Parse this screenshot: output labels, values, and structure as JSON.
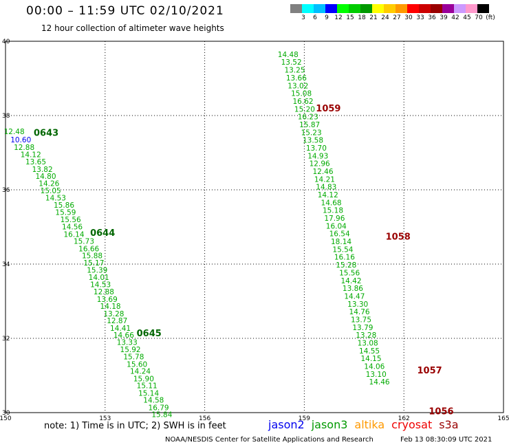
{
  "header": {
    "title": "00:00 – 11:59 UTC 02/10/2021",
    "subtitle": "12 hour collection of altimeter wave heights"
  },
  "color_legend": {
    "swatches": [
      "#808080",
      "#00ffff",
      "#00bfff",
      "#0000ff",
      "#00ff00",
      "#00cc00",
      "#009900",
      "#ffff00",
      "#ffcc00",
      "#ff9900",
      "#ff0000",
      "#cc0000",
      "#990000",
      "#990099",
      "#cc99ff",
      "#ff99cc",
      "#000000"
    ],
    "labels": [
      "3",
      "6",
      "9",
      "12",
      "15",
      "18",
      "21",
      "24",
      "27",
      "30",
      "33",
      "36",
      "39",
      "42",
      "45",
      "70",
      "(ft)"
    ]
  },
  "footer": {
    "note": "note: 1) Time is in UTC; 2) SWH is in feet",
    "credit_left": "NOAA/NESDIS Center for Satellite Applications and Research",
    "credit_right": "Feb 13 08:30:09 UTC 2021"
  },
  "satellites": [
    {
      "name": "jason2",
      "color": "#0000ee"
    },
    {
      "name": "jason3",
      "color": "#009900"
    },
    {
      "name": "altika",
      "color": "#ff9900"
    },
    {
      "name": "cryosat",
      "color": "#ee0000"
    },
    {
      "name": "s3a",
      "color": "#990000"
    }
  ],
  "chart_data": {
    "type": "scatter",
    "xlim": [
      150,
      165
    ],
    "ylim": [
      30,
      40
    ],
    "x_ticks": [
      "150",
      "153",
      "156",
      "159",
      "162",
      "165"
    ],
    "y_ticks": [
      "30",
      "32",
      "34",
      "36",
      "38",
      "40"
    ],
    "grid": true,
    "pass_labels": [
      {
        "text": "0643",
        "x": 150.85,
        "y": 37.55,
        "color": "#006600"
      },
      {
        "text": "0644",
        "x": 152.55,
        "y": 34.85,
        "color": "#006600"
      },
      {
        "text": "0645",
        "x": 153.95,
        "y": 32.15,
        "color": "#006600"
      },
      {
        "text": "1059",
        "x": 159.35,
        "y": 38.2,
        "color": "#990000"
      },
      {
        "text": "1058",
        "x": 161.45,
        "y": 34.75,
        "color": "#990000"
      },
      {
        "text": "1057",
        "x": 162.4,
        "y": 31.15,
        "color": "#990000"
      },
      {
        "text": "1056",
        "x": 162.75,
        "y": 30.05,
        "color": "#990000"
      }
    ],
    "series": [
      {
        "name": "jason2",
        "color": "#0000ee",
        "points": [
          {
            "x": 150.15,
            "y": 37.35,
            "v": "10.60"
          }
        ]
      },
      {
        "name": "jason3",
        "color": "#00aa00",
        "points": [
          {
            "x": 149.95,
            "y": 37.57,
            "v": "12.48"
          },
          {
            "x": 150.25,
            "y": 37.15,
            "v": "12.88"
          },
          {
            "x": 150.45,
            "y": 36.95,
            "v": "14.12"
          },
          {
            "x": 150.6,
            "y": 36.76,
            "v": "13.65"
          },
          {
            "x": 150.8,
            "y": 36.56,
            "v": "13.82"
          },
          {
            "x": 150.9,
            "y": 36.37,
            "v": "14.80"
          },
          {
            "x": 151.0,
            "y": 36.18,
            "v": "14.26"
          },
          {
            "x": 151.05,
            "y": 35.98,
            "v": "15.05"
          },
          {
            "x": 151.2,
            "y": 35.79,
            "v": "14.53"
          },
          {
            "x": 151.45,
            "y": 35.59,
            "v": "15.86"
          },
          {
            "x": 151.5,
            "y": 35.4,
            "v": "15.59"
          },
          {
            "x": 151.65,
            "y": 35.2,
            "v": "15.56"
          },
          {
            "x": 151.7,
            "y": 35.01,
            "v": "14.56"
          },
          {
            "x": 151.75,
            "y": 34.81,
            "v": "16.14"
          },
          {
            "x": 152.05,
            "y": 34.62,
            "v": "15.73"
          },
          {
            "x": 152.2,
            "y": 34.42,
            "v": "16.66"
          },
          {
            "x": 152.3,
            "y": 34.23,
            "v": "15.88"
          },
          {
            "x": 152.35,
            "y": 34.04,
            "v": "15.17"
          },
          {
            "x": 152.45,
            "y": 33.84,
            "v": "15.39"
          },
          {
            "x": 152.5,
            "y": 33.65,
            "v": "14.01"
          },
          {
            "x": 152.55,
            "y": 33.45,
            "v": "14.53"
          },
          {
            "x": 152.65,
            "y": 33.26,
            "v": "12.88"
          },
          {
            "x": 152.75,
            "y": 33.06,
            "v": "13.69"
          },
          {
            "x": 152.85,
            "y": 32.87,
            "v": "14.18"
          },
          {
            "x": 152.95,
            "y": 32.67,
            "v": "13.28"
          },
          {
            "x": 153.05,
            "y": 32.48,
            "v": "12.87"
          },
          {
            "x": 153.15,
            "y": 32.28,
            "v": "14.41"
          },
          {
            "x": 153.25,
            "y": 32.09,
            "v": "14.66"
          },
          {
            "x": 153.35,
            "y": 31.9,
            "v": "13.33"
          },
          {
            "x": 153.45,
            "y": 31.7,
            "v": "15.92"
          },
          {
            "x": 153.55,
            "y": 31.51,
            "v": "15.78"
          },
          {
            "x": 153.65,
            "y": 31.31,
            "v": "15.60"
          },
          {
            "x": 153.75,
            "y": 31.12,
            "v": "14.24"
          },
          {
            "x": 153.85,
            "y": 30.92,
            "v": "15.90"
          },
          {
            "x": 153.95,
            "y": 30.73,
            "v": "15.11"
          },
          {
            "x": 154.0,
            "y": 30.53,
            "v": "15.14"
          },
          {
            "x": 154.15,
            "y": 30.34,
            "v": "14.58"
          },
          {
            "x": 154.3,
            "y": 30.14,
            "v": "16.79"
          },
          {
            "x": 154.4,
            "y": 29.95,
            "v": "15.84"
          },
          {
            "x": 158.2,
            "y": 39.65,
            "v": "14.48"
          },
          {
            "x": 158.3,
            "y": 39.44,
            "v": "13.52"
          },
          {
            "x": 158.4,
            "y": 39.23,
            "v": "13.25"
          },
          {
            "x": 158.45,
            "y": 39.02,
            "v": "13.66"
          },
          {
            "x": 158.5,
            "y": 38.81,
            "v": "13.02"
          },
          {
            "x": 158.6,
            "y": 38.6,
            "v": "15.08"
          },
          {
            "x": 158.65,
            "y": 38.39,
            "v": "16.62"
          },
          {
            "x": 158.7,
            "y": 38.18,
            "v": "15.20"
          },
          {
            "x": 158.8,
            "y": 37.97,
            "v": "16.23"
          },
          {
            "x": 158.85,
            "y": 37.76,
            "v": "15.87"
          },
          {
            "x": 158.9,
            "y": 37.55,
            "v": "15.23"
          },
          {
            "x": 158.95,
            "y": 37.34,
            "v": "13.58"
          },
          {
            "x": 159.05,
            "y": 37.13,
            "v": "13.70"
          },
          {
            "x": 159.1,
            "y": 36.92,
            "v": "14.93"
          },
          {
            "x": 159.15,
            "y": 36.71,
            "v": "12.96"
          },
          {
            "x": 159.25,
            "y": 36.5,
            "v": "12.46"
          },
          {
            "x": 159.3,
            "y": 36.29,
            "v": "14.21"
          },
          {
            "x": 159.35,
            "y": 36.08,
            "v": "14.83"
          },
          {
            "x": 159.4,
            "y": 35.87,
            "v": "14.12"
          },
          {
            "x": 159.5,
            "y": 35.66,
            "v": "14.68"
          },
          {
            "x": 159.55,
            "y": 35.45,
            "v": "15.18"
          },
          {
            "x": 159.6,
            "y": 35.24,
            "v": "17.96"
          },
          {
            "x": 159.65,
            "y": 35.03,
            "v": "16.04"
          },
          {
            "x": 159.75,
            "y": 34.82,
            "v": "16.54"
          },
          {
            "x": 159.8,
            "y": 34.61,
            "v": "18.14"
          },
          {
            "x": 159.85,
            "y": 34.4,
            "v": "15.54"
          },
          {
            "x": 159.9,
            "y": 34.19,
            "v": "16.16"
          },
          {
            "x": 159.95,
            "y": 33.98,
            "v": "15.28"
          },
          {
            "x": 160.05,
            "y": 33.77,
            "v": "15.56"
          },
          {
            "x": 160.1,
            "y": 33.56,
            "v": "14.42"
          },
          {
            "x": 160.15,
            "y": 33.35,
            "v": "13.86"
          },
          {
            "x": 160.2,
            "y": 33.14,
            "v": "14.47"
          },
          {
            "x": 160.3,
            "y": 32.93,
            "v": "13.30"
          },
          {
            "x": 160.35,
            "y": 32.72,
            "v": "14.76"
          },
          {
            "x": 160.4,
            "y": 32.51,
            "v": "13.75"
          },
          {
            "x": 160.45,
            "y": 32.3,
            "v": "13.79"
          },
          {
            "x": 160.55,
            "y": 32.09,
            "v": "13.28"
          },
          {
            "x": 160.6,
            "y": 31.88,
            "v": "13.08"
          },
          {
            "x": 160.65,
            "y": 31.67,
            "v": "14.55"
          },
          {
            "x": 160.7,
            "y": 31.46,
            "v": "14.15"
          },
          {
            "x": 160.8,
            "y": 31.25,
            "v": "14.06"
          },
          {
            "x": 160.85,
            "y": 31.04,
            "v": "13.10"
          },
          {
            "x": 160.95,
            "y": 30.83,
            "v": "14.46"
          }
        ]
      }
    ]
  }
}
